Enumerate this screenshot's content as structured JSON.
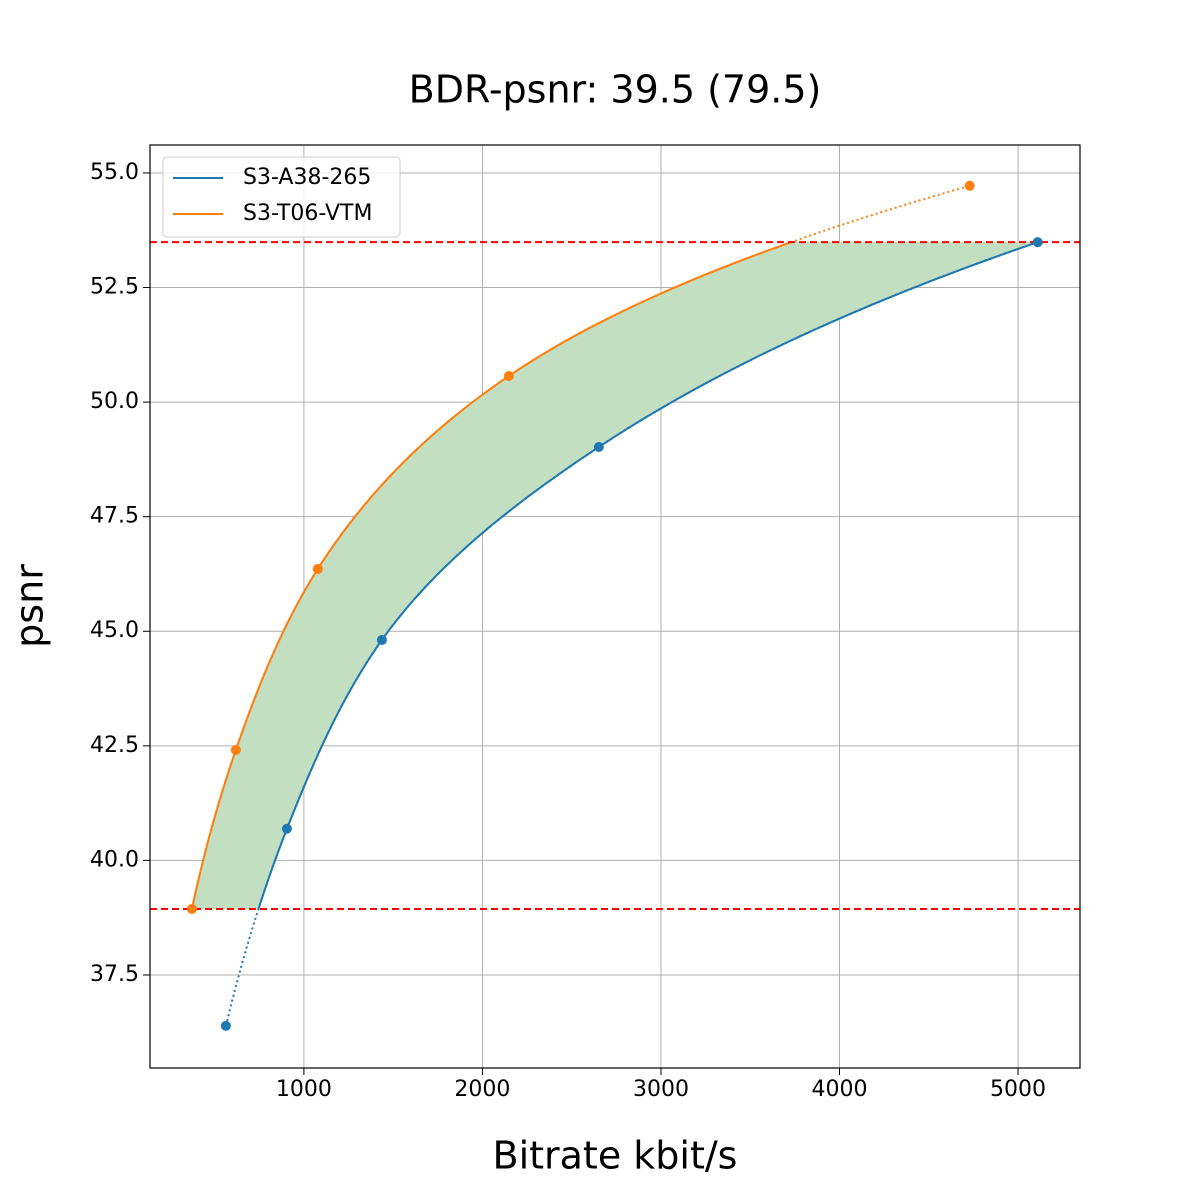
{
  "chart_data": {
    "type": "line",
    "title": "BDR-psnr: 39.5 (79.5)",
    "x_label": "Bitrate kbit/s",
    "y_label": "psnr",
    "series": [
      {
        "name": "S3-A38-265",
        "color": "#1f77b4",
        "x": [
          563,
          905,
          1437,
          2652,
          5110
        ],
        "values": [
          36.39,
          40.69,
          44.81,
          49.02,
          53.49
        ]
      },
      {
        "name": "S3-T06-VTM",
        "color": "#ff7f0e",
        "x": [
          373,
          619,
          1078,
          2148,
          4729
        ],
        "values": [
          38.94,
          42.41,
          46.36,
          50.57,
          54.72
        ]
      }
    ],
    "hlines": [
      38.94,
      53.49
    ],
    "hline_color": "#ff0000",
    "fill_color": "#c2dfc2",
    "xlim": [
      138,
      5347
    ],
    "ylim": [
      35.47,
      55.61
    ],
    "xticks": [
      1000,
      2000,
      3000,
      4000,
      5000
    ],
    "yticks": [
      {
        "value": 37.5,
        "label": "37.5"
      },
      {
        "value": 40,
        "label": "40.0"
      },
      {
        "value": 42.5,
        "label": "42.5"
      },
      {
        "value": 45,
        "label": "45.0"
      },
      {
        "value": 47.5,
        "label": "47.5"
      },
      {
        "value": 50,
        "label": "50.0"
      },
      {
        "value": 52.5,
        "label": "52.5"
      },
      {
        "value": 55,
        "label": "55.0"
      }
    ],
    "grid": true,
    "legend": "upper left"
  }
}
